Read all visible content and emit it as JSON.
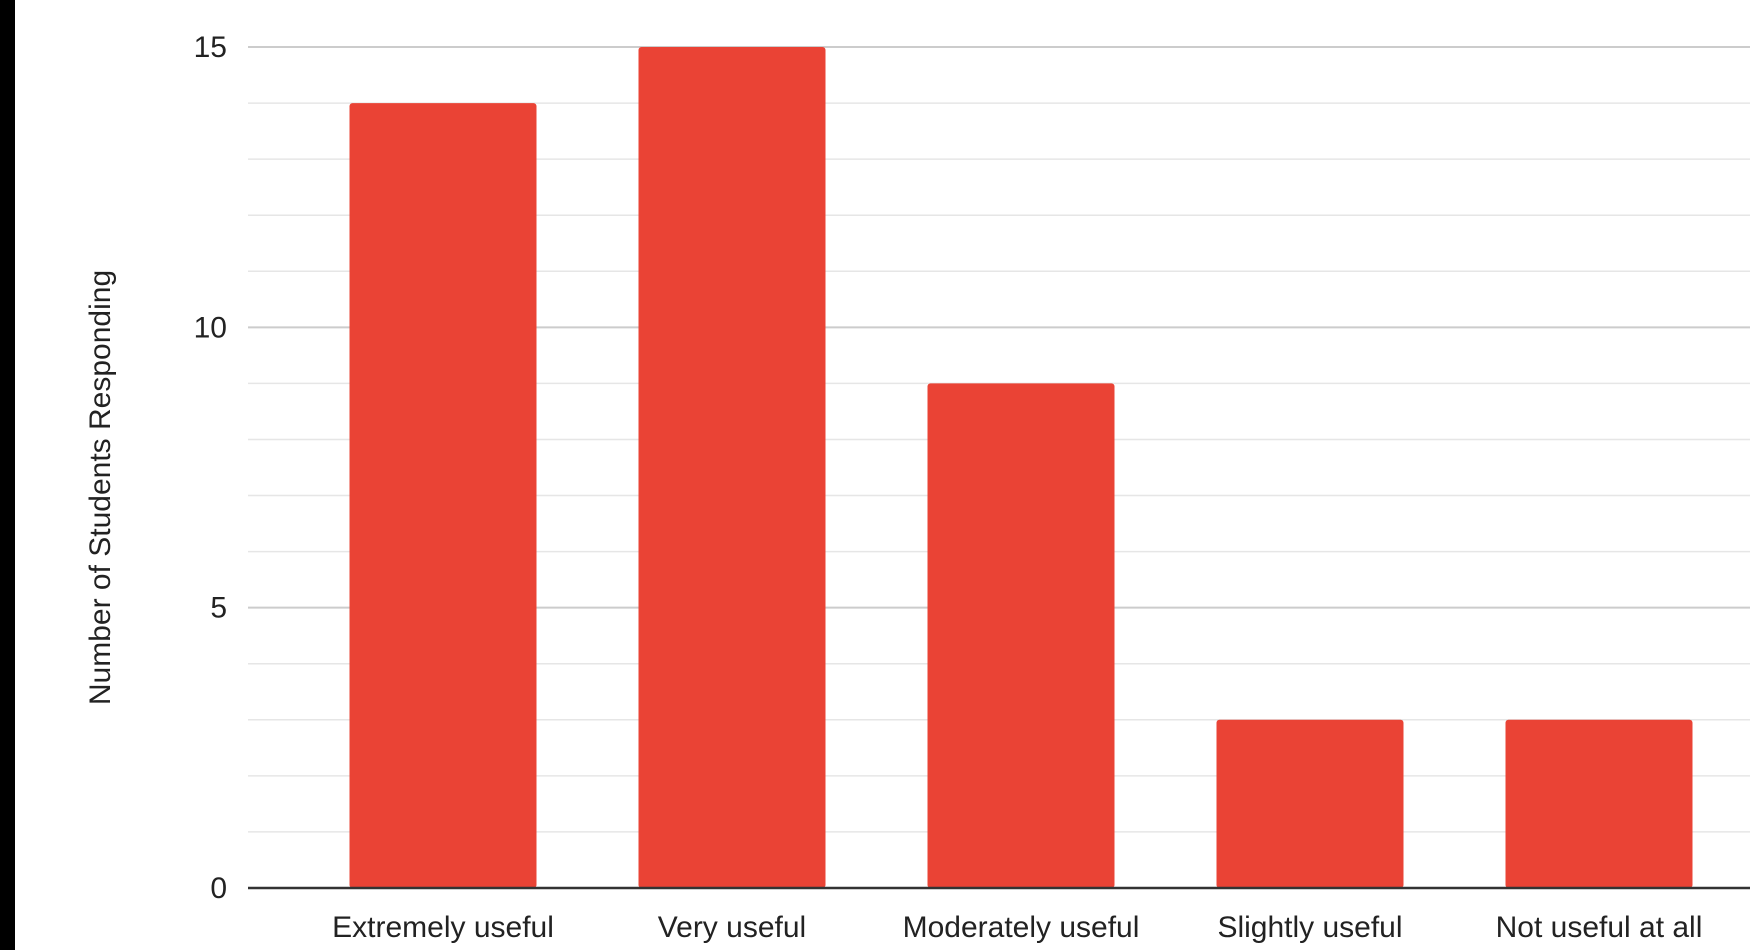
{
  "chart_data": {
    "type": "bar",
    "categories": [
      "Extremely useful",
      "Very useful",
      "Moderately useful",
      "Slightly useful",
      "Not useful at all"
    ],
    "values": [
      14,
      15,
      9,
      3,
      3
    ],
    "title": "",
    "xlabel": "",
    "ylabel": "Number of Students Responding",
    "ylim": [
      0,
      15
    ],
    "yticks": [
      "0",
      "5",
      "10",
      "15"
    ],
    "minor_gridlines": true,
    "grid": true,
    "legend": "none",
    "bar_color": "#ea4335",
    "gridline_color": "#d9d9d9",
    "axis_color": "#333333"
  }
}
